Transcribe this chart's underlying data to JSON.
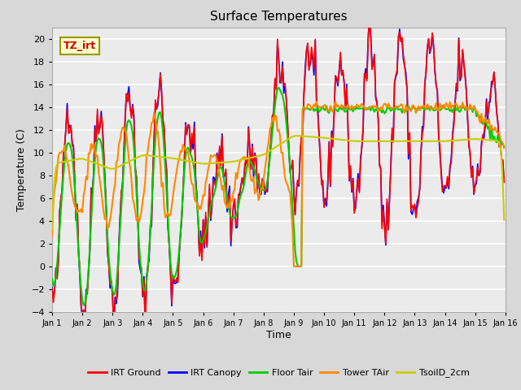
{
  "title": "Surface Temperatures",
  "xlabel": "Time",
  "ylabel": "Temperature (C)",
  "ylim": [
    -4,
    21
  ],
  "yticks": [
    -4,
    -2,
    0,
    2,
    4,
    6,
    8,
    10,
    12,
    14,
    16,
    18,
    20
  ],
  "bg_color": "#d8d8d8",
  "plot_bg_color": "#ebebeb",
  "annotation_text": "TZ_irt",
  "annotation_color": "#cc0000",
  "annotation_bg": "#ffffcc",
  "annotation_border": "#999900",
  "legend_entries": [
    "IRT Ground",
    "IRT Canopy",
    "Floor Tair",
    "Tower TAir",
    "TsoilD_2cm"
  ],
  "line_colors": [
    "#ff0000",
    "#0000ff",
    "#00cc00",
    "#ff8800",
    "#cccc00"
  ],
  "line_widths": [
    1.2,
    1.2,
    1.5,
    1.5,
    1.5
  ]
}
